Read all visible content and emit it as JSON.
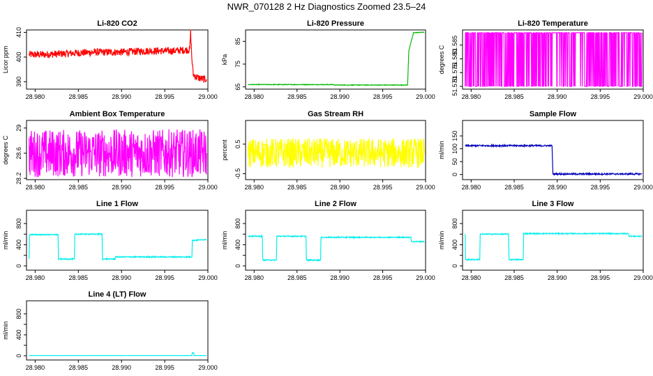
{
  "page": {
    "title": "NWR_070128  2 Hz Diagnostics Zoomed 23.5–24"
  },
  "chart_data": [
    {
      "type": "line",
      "title": "Li-820 CO2",
      "ylabel": "Licor ppm",
      "color": "#ff0000",
      "xlim": [
        28.979,
        29.0
      ],
      "ylim": [
        387,
        411
      ],
      "yticks": [
        390,
        400,
        410
      ],
      "xticks": [
        "28.980",
        "28.985",
        "28.990",
        "28.995",
        "29.000"
      ],
      "series": [
        {
          "x": [
            28.9793,
            28.981,
            28.984,
            28.987,
            28.99,
            28.993,
            28.996,
            28.9979,
            28.998,
            28.99815,
            28.9983,
            28.9986,
            28.999,
            28.9995,
            28.99985
          ],
          "y": [
            401,
            401,
            401.5,
            402,
            402,
            402.5,
            402.5,
            403,
            410,
            399,
            393,
            392,
            391.5,
            391,
            391
          ],
          "noise": 1.5
        }
      ]
    },
    {
      "type": "line",
      "title": "Li-820 Pressure",
      "ylabel": "kPa",
      "color": "#00bb00",
      "xlim": [
        28.979,
        29.0
      ],
      "ylim": [
        64,
        90
      ],
      "yticks": [
        65,
        75,
        85
      ],
      "xticks": [
        "28.980",
        "28.985",
        "28.990",
        "28.995",
        "29.000"
      ],
      "series": [
        {
          "x": [
            28.9793,
            28.9893,
            28.98935,
            28.9979,
            28.99805,
            28.9986,
            28.99985
          ],
          "y": [
            66,
            66,
            65.8,
            65.8,
            81,
            88.8,
            89
          ],
          "noise": 0.15
        }
      ]
    },
    {
      "type": "line",
      "title": "Li-820 Temperature",
      "ylabel": "degrees C",
      "color": "#ff00ff",
      "xlim": [
        28.979,
        29.0
      ],
      "ylim": [
        51.569,
        51.5905
      ],
      "yticks": [
        51.57,
        51.575,
        51.58,
        51.585
      ],
      "ytick_labels": [
        "51.570",
        "51.575",
        "51.580",
        "51.585"
      ],
      "xticks": [
        "28.980",
        "28.985",
        "28.990",
        "28.995",
        "29.000"
      ],
      "series": [
        {
          "x": [
            28.9793,
            28.99985
          ],
          "y": [
            51.5895,
            51.5895
          ],
          "noise": 0,
          "quantized_low": 51.57,
          "quantized_high": 51.5895
        }
      ]
    },
    {
      "type": "line",
      "title": "Ambient Box Temperature",
      "ylabel": "degrees C",
      "color": "#ff00ff",
      "xlim": [
        28.979,
        29.0
      ],
      "ylim": [
        28.18,
        29.12
      ],
      "yticks": [
        28.2,
        28.6,
        29.0
      ],
      "xticks": [
        "28.980",
        "28.985",
        "28.990",
        "28.995",
        "29.000"
      ],
      "series": [
        {
          "x": [
            28.9793,
            28.99985
          ],
          "y": [
            28.6,
            28.6
          ],
          "noise": 0.38
        }
      ]
    },
    {
      "type": "line",
      "title": "Gas Stream RH",
      "ylabel": "percent",
      "color": "#ffff00",
      "xlim": [
        28.979,
        29.0
      ],
      "ylim": [
        -0.7,
        1.3
      ],
      "yticks": [
        -0.5,
        0.5
      ],
      "xticks": [
        "28.980",
        "28.985",
        "28.990",
        "28.995",
        "29.000"
      ],
      "series": [
        {
          "x": [
            28.9793,
            28.99985
          ],
          "y": [
            0.2,
            0.2
          ],
          "noise": 0.5
        }
      ]
    },
    {
      "type": "line",
      "title": "Sample Flow",
      "ylabel": "ml/min",
      "color": "#0000bb",
      "xlim": [
        28.979,
        29.0
      ],
      "ylim": [
        -20,
        210
      ],
      "yticks": [
        0,
        50,
        100,
        150
      ],
      "xticks": [
        "28.980",
        "28.985",
        "28.990",
        "28.995",
        "29.000"
      ],
      "series": [
        {
          "x": [
            28.9793,
            28.9894,
            28.9895,
            28.99985
          ],
          "y": [
            112,
            112,
            2,
            2
          ],
          "noise": 3
        }
      ]
    },
    {
      "type": "line",
      "title": "Line 1 Flow",
      "ylabel": "ml/min",
      "color": "#00eeee",
      "xlim": [
        28.979,
        29.0
      ],
      "ylim": [
        -80,
        1050
      ],
      "yticks": [
        0,
        200,
        400,
        600,
        800
      ],
      "ytick_labels": [
        "0",
        "",
        "400",
        "",
        "800"
      ],
      "xticks": [
        "28.980",
        "28.985",
        "28.990",
        "28.995",
        "29.000"
      ],
      "series": [
        {
          "x": [
            28.9793,
            28.97935,
            28.98265,
            28.9827,
            28.98455,
            28.9846,
            28.98775,
            28.9878,
            28.98925,
            28.9893,
            28.99815,
            28.9982,
            28.99985
          ],
          "y": [
            130,
            590,
            590,
            130,
            130,
            600,
            600,
            130,
            130,
            170,
            170,
            480,
            500
          ],
          "noise": 10
        }
      ]
    },
    {
      "type": "line",
      "title": "Line 2 Flow",
      "ylabel": "ml/min",
      "color": "#00eeee",
      "xlim": [
        28.979,
        29.0
      ],
      "ylim": [
        -80,
        1050
      ],
      "yticks": [
        0,
        200,
        400,
        600,
        800
      ],
      "ytick_labels": [
        "0",
        "",
        "400",
        "",
        "800"
      ],
      "xticks": [
        "28.980",
        "28.985",
        "28.990",
        "28.995",
        "29.000"
      ],
      "series": [
        {
          "x": [
            28.9793,
            28.98095,
            28.981,
            28.9826,
            28.98265,
            28.98605,
            28.9861,
            28.98775,
            28.9878,
            28.9983,
            28.99835,
            28.99985
          ],
          "y": [
            560,
            560,
            110,
            110,
            560,
            560,
            110,
            110,
            540,
            540,
            460,
            460
          ],
          "noise": 10
        }
      ]
    },
    {
      "type": "line",
      "title": "Line 3 Flow",
      "ylabel": "ml/min",
      "color": "#00eeee",
      "xlim": [
        28.979,
        29.0
      ],
      "ylim": [
        -80,
        1050
      ],
      "yticks": [
        0,
        200,
        400,
        600,
        800
      ],
      "ytick_labels": [
        "0",
        "",
        "400",
        "",
        "800"
      ],
      "xticks": [
        "28.980",
        "28.985",
        "28.990",
        "28.995",
        "29.000"
      ],
      "series": [
        {
          "x": [
            28.9793,
            28.97935,
            28.981,
            28.98105,
            28.98435,
            28.9844,
            28.98605,
            28.9861,
            28.9983,
            28.99835,
            28.99985
          ],
          "y": [
            600,
            120,
            120,
            600,
            600,
            120,
            120,
            610,
            610,
            560,
            560
          ],
          "noise": 10
        }
      ]
    },
    {
      "type": "line",
      "title": "Line 4 (LT) Flow",
      "ylabel": "ml/min",
      "color": "#00eeee",
      "xlim": [
        28.979,
        29.0
      ],
      "ylim": [
        -80,
        1050
      ],
      "yticks": [
        0,
        200,
        400,
        600,
        800
      ],
      "ytick_labels": [
        "0",
        "",
        "400",
        "",
        "800"
      ],
      "xticks": [
        "28.980",
        "28.985",
        "28.990",
        "28.995",
        "29.000"
      ],
      "series": [
        {
          "x": [
            28.9793,
            28.99815,
            28.9982,
            28.99835,
            28.9984,
            28.99985
          ],
          "y": [
            5,
            5,
            60,
            60,
            5,
            5
          ],
          "noise": 2
        }
      ]
    }
  ]
}
